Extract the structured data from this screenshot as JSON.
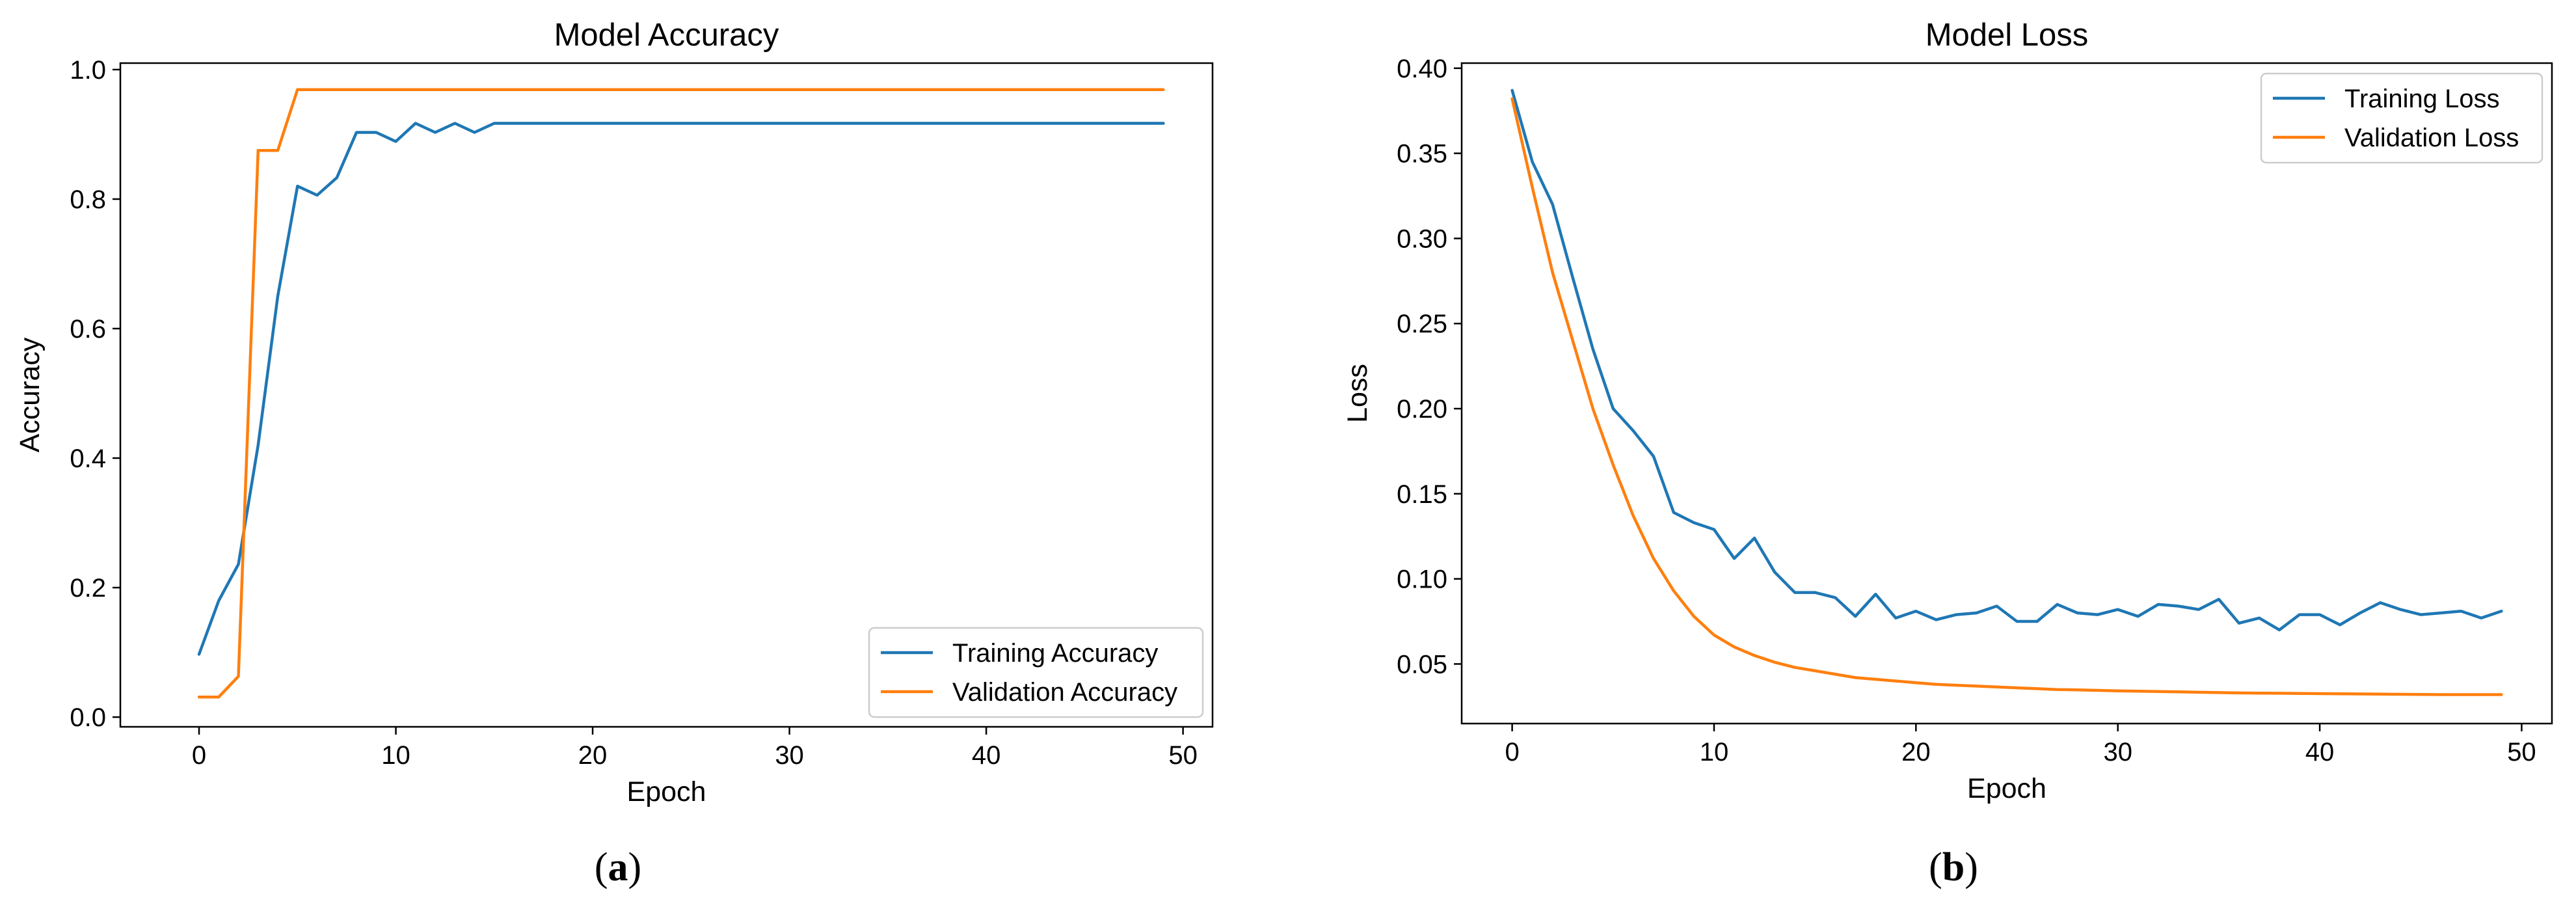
{
  "chart_data": [
    {
      "type": "line",
      "title": "Model Accuracy",
      "xlabel": "Epoch",
      "ylabel": "Accuracy",
      "xlim": [
        -4,
        51.5
      ],
      "ylim": [
        -0.015,
        1.01
      ],
      "xticks": [
        0,
        10,
        20,
        30,
        40,
        50
      ],
      "yticks": [
        0.0,
        0.2,
        0.4,
        0.6,
        0.8,
        1.0
      ],
      "ytick_decimals": 1,
      "legend_position": "lower-right",
      "caption": {
        "open": "(",
        "letter": "a",
        "close": ")"
      },
      "series": [
        {
          "name": "Training Accuracy",
          "color": "#1f77b4",
          "x": [
            0,
            1,
            2,
            3,
            4,
            5,
            6,
            7,
            8,
            9,
            10,
            11,
            12,
            13,
            14,
            15,
            16,
            17,
            18,
            19,
            20,
            21,
            22,
            23,
            24,
            25,
            26,
            27,
            28,
            29,
            30,
            31,
            32,
            33,
            34,
            35,
            36,
            37,
            38,
            39,
            40,
            41,
            42,
            43,
            44,
            45,
            46,
            47,
            48,
            49
          ],
          "values": [
            0.097,
            0.18,
            0.236,
            0.42,
            0.65,
            0.82,
            0.806,
            0.833,
            0.903,
            0.903,
            0.889,
            0.917,
            0.903,
            0.917,
            0.903,
            0.917,
            0.917,
            0.917,
            0.917,
            0.917,
            0.917,
            0.917,
            0.917,
            0.917,
            0.917,
            0.917,
            0.917,
            0.917,
            0.917,
            0.917,
            0.917,
            0.917,
            0.917,
            0.917,
            0.917,
            0.917,
            0.917,
            0.917,
            0.917,
            0.917,
            0.917,
            0.917,
            0.917,
            0.917,
            0.917,
            0.917,
            0.917,
            0.917,
            0.917,
            0.917
          ]
        },
        {
          "name": "Validation Accuracy",
          "color": "#ff7f0e",
          "x": [
            0,
            1,
            2,
            3,
            4,
            5,
            6,
            7,
            8,
            9,
            10,
            11,
            12,
            13,
            14,
            15,
            16,
            17,
            18,
            19,
            20,
            21,
            22,
            23,
            24,
            25,
            26,
            27,
            28,
            29,
            30,
            31,
            32,
            33,
            34,
            35,
            36,
            37,
            38,
            39,
            40,
            41,
            42,
            43,
            44,
            45,
            46,
            47,
            48,
            49
          ],
          "values": [
            0.031,
            0.031,
            0.063,
            0.875,
            0.875,
            0.969,
            0.969,
            0.969,
            0.969,
            0.969,
            0.969,
            0.969,
            0.969,
            0.969,
            0.969,
            0.969,
            0.969,
            0.969,
            0.969,
            0.969,
            0.969,
            0.969,
            0.969,
            0.969,
            0.969,
            0.969,
            0.969,
            0.969,
            0.969,
            0.969,
            0.969,
            0.969,
            0.969,
            0.969,
            0.969,
            0.969,
            0.969,
            0.969,
            0.969,
            0.969,
            0.969,
            0.969,
            0.969,
            0.969,
            0.969,
            0.969,
            0.969,
            0.969,
            0.969,
            0.969
          ]
        }
      ]
    },
    {
      "type": "line",
      "title": "Model Loss",
      "xlabel": "Epoch",
      "ylabel": "Loss",
      "xlim": [
        -2.5,
        51.5
      ],
      "ylim": [
        0.015,
        0.403
      ],
      "xticks": [
        0,
        10,
        20,
        30,
        40,
        50
      ],
      "yticks": [
        0.05,
        0.1,
        0.15,
        0.2,
        0.25,
        0.3,
        0.35,
        0.4
      ],
      "ytick_decimals": 2,
      "legend_position": "top-right",
      "caption": {
        "open": "(",
        "letter": "b",
        "close": ")"
      },
      "series": [
        {
          "name": "Training Loss",
          "color": "#1f77b4",
          "x": [
            0,
            1,
            2,
            3,
            4,
            5,
            6,
            7,
            8,
            9,
            10,
            11,
            12,
            13,
            14,
            15,
            16,
            17,
            18,
            19,
            20,
            21,
            22,
            23,
            24,
            25,
            26,
            27,
            28,
            29,
            30,
            31,
            32,
            33,
            34,
            35,
            36,
            37,
            38,
            39,
            40,
            41,
            42,
            43,
            44,
            45,
            46,
            47,
            48,
            49
          ],
          "values": [
            0.387,
            0.345,
            0.32,
            0.277,
            0.235,
            0.2,
            0.187,
            0.172,
            0.139,
            0.133,
            0.129,
            0.112,
            0.124,
            0.104,
            0.092,
            0.092,
            0.089,
            0.078,
            0.091,
            0.077,
            0.081,
            0.076,
            0.079,
            0.08,
            0.084,
            0.075,
            0.075,
            0.085,
            0.08,
            0.079,
            0.082,
            0.078,
            0.085,
            0.084,
            0.082,
            0.088,
            0.074,
            0.077,
            0.07,
            0.079,
            0.079,
            0.073,
            0.08,
            0.086,
            0.082,
            0.079,
            0.08,
            0.081,
            0.077,
            0.081
          ]
        },
        {
          "name": "Validation Loss",
          "color": "#ff7f0e",
          "x": [
            0,
            1,
            2,
            3,
            4,
            5,
            6,
            7,
            8,
            9,
            10,
            11,
            12,
            13,
            14,
            15,
            16,
            17,
            18,
            19,
            20,
            21,
            22,
            23,
            24,
            25,
            26,
            27,
            28,
            29,
            30,
            31,
            32,
            33,
            34,
            35,
            36,
            37,
            38,
            39,
            40,
            41,
            42,
            43,
            44,
            45,
            46,
            47,
            48,
            49
          ],
          "values": [
            0.382,
            0.33,
            0.28,
            0.24,
            0.2,
            0.167,
            0.137,
            0.112,
            0.093,
            0.078,
            0.067,
            0.06,
            0.055,
            0.051,
            0.048,
            0.046,
            0.044,
            0.042,
            0.041,
            0.04,
            0.039,
            0.038,
            0.0375,
            0.037,
            0.0365,
            0.036,
            0.0355,
            0.035,
            0.0348,
            0.0345,
            0.0342,
            0.034,
            0.0338,
            0.0336,
            0.0334,
            0.0332,
            0.033,
            0.0329,
            0.0328,
            0.0327,
            0.0326,
            0.0325,
            0.0324,
            0.0323,
            0.0322,
            0.0321,
            0.032,
            0.032,
            0.032,
            0.032
          ]
        }
      ]
    }
  ]
}
